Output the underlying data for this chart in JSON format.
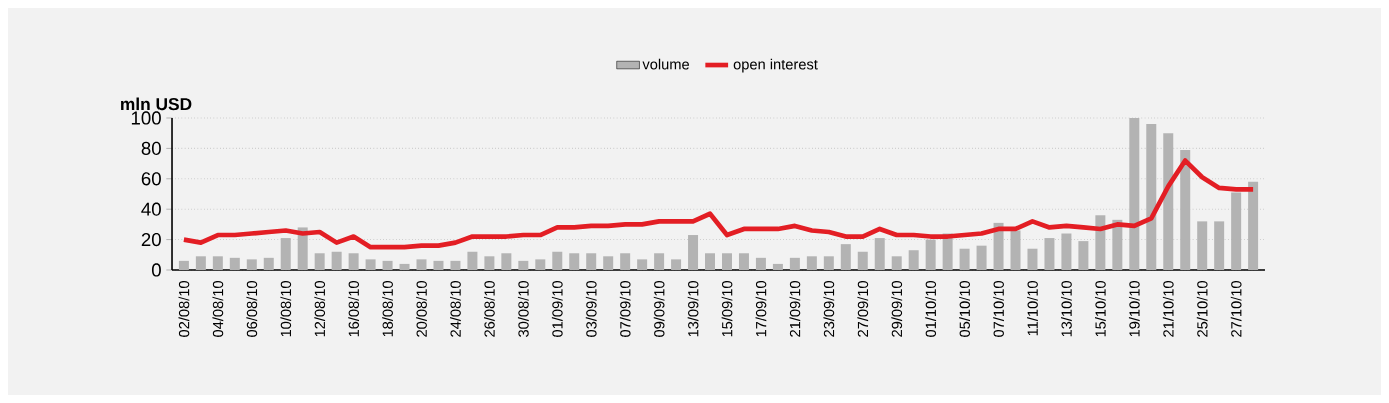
{
  "chart_data": {
    "type": "bar",
    "ylabel": "mln USD",
    "categories": [
      "02/08/10",
      null,
      "04/08/10",
      null,
      "06/08/10",
      null,
      "10/08/10",
      null,
      "12/08/10",
      null,
      "16/08/10",
      null,
      "18/08/10",
      null,
      "20/08/10",
      null,
      "24/08/10",
      null,
      "26/08/10",
      null,
      "30/08/10",
      null,
      "01/09/10",
      null,
      "03/09/10",
      null,
      "07/09/10",
      null,
      "09/09/10",
      null,
      "13/09/10",
      null,
      "15/09/10",
      null,
      "17/09/10",
      null,
      "21/09/10",
      null,
      "23/09/10",
      null,
      "27/09/10",
      null,
      "29/09/10",
      null,
      "01/10/10",
      null,
      "05/10/10",
      null,
      "07/10/10",
      null,
      "11/10/10",
      null,
      "13/10/10",
      null,
      "15/10/10",
      null,
      "19/10/10",
      null,
      "21/10/10",
      null,
      "25/10/10",
      null,
      "27/10/10",
      null
    ],
    "series": [
      {
        "name": "volume",
        "color": "#b3b3b3",
        "values": [
          6,
          9,
          9,
          8,
          7,
          8,
          21,
          28,
          11,
          12,
          11,
          7,
          6,
          4,
          7,
          6,
          6,
          12,
          9,
          11,
          6,
          7,
          12,
          11,
          11,
          9,
          11,
          7,
          11,
          7,
          23,
          11,
          11,
          11,
          8,
          4,
          8,
          9,
          9,
          17,
          12,
          21,
          9,
          13,
          20,
          24,
          14,
          16,
          31,
          26,
          14,
          21,
          24,
          19,
          36,
          33,
          100,
          96,
          90,
          79,
          32,
          32,
          51,
          58
        ]
      },
      {
        "name": "open interest",
        "type": "line",
        "color": "#e31e24",
        "values": [
          20,
          18,
          23,
          23,
          24,
          25,
          26,
          24,
          25,
          18,
          22,
          15,
          15,
          15,
          16,
          16,
          18,
          22,
          22,
          22,
          23,
          23,
          28,
          28,
          29,
          29,
          30,
          30,
          32,
          32,
          32,
          37,
          23,
          27,
          27,
          27,
          29,
          26,
          25,
          22,
          22,
          27,
          23,
          23,
          22,
          22,
          23,
          24,
          27,
          27,
          32,
          28,
          29,
          28,
          27,
          30,
          29,
          34,
          55,
          72,
          61,
          54,
          53,
          53
        ]
      }
    ],
    "ylim": [
      0,
      100
    ],
    "yticks": [
      0,
      20,
      40,
      60,
      80,
      100
    ],
    "grid": "y",
    "legend": "top"
  }
}
